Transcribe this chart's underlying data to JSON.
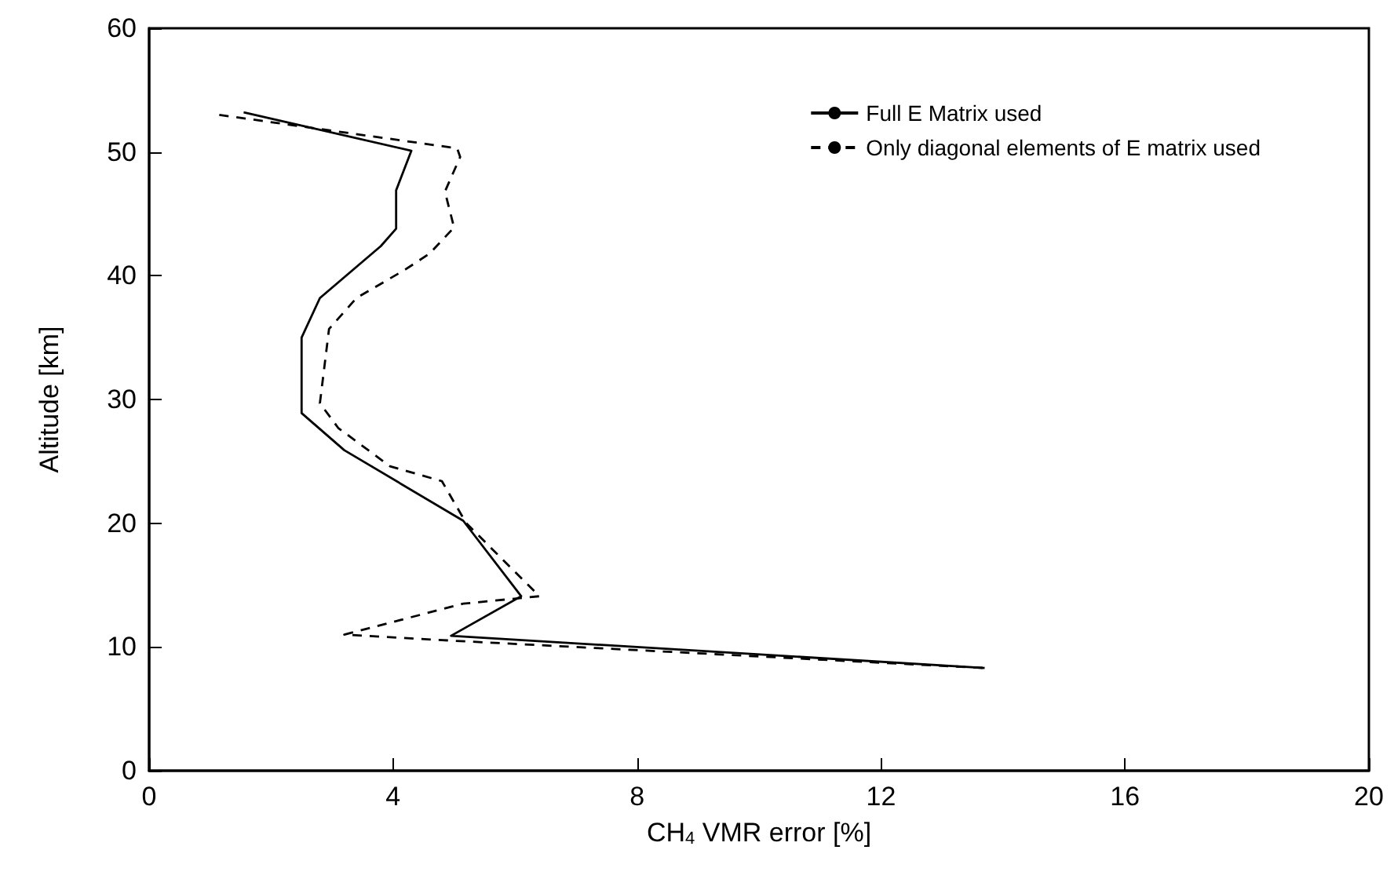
{
  "chart_data": {
    "type": "line",
    "xlabel": "CH$_{4}$ VMR error [%]",
    "ylabel": "Altitude [km]",
    "series": [
      {
        "name": "Full E Matrix used",
        "color": "#000000",
        "line_style": "solid",
        "x": [
          1.55,
          4.3,
          4.05,
          4.05,
          3.8,
          2.8,
          2.5,
          2.5,
          3.2,
          5.15,
          6.1,
          4.95,
          13.7
        ],
        "values": [
          53.2,
          50.1,
          46.9,
          43.8,
          42.4,
          38.2,
          35,
          28.9,
          25.9,
          20.2,
          14.1,
          10.9,
          8.3
        ]
      },
      {
        "name": "Only diagonal elements of E matrix used",
        "color": "#000000",
        "line_style": "dashed",
        "x": [
          1.15,
          5.05,
          5.1,
          4.85,
          5.0,
          4.6,
          4.2,
          3.4,
          2.95,
          2.8,
          3.1,
          3.95,
          4.8,
          5.2,
          6.4,
          5.15,
          3.2,
          5.0,
          13.7
        ],
        "values": [
          53,
          50.3,
          49.6,
          46.8,
          43.9,
          41.8,
          40.5,
          38.2,
          35.7,
          29.7,
          27.7,
          24.6,
          23.4,
          20,
          14.1,
          13.5,
          11.0,
          10.5,
          8.3
        ]
      }
    ],
    "xlim": [
      0,
      20
    ],
    "xticks": [
      0,
      4,
      8,
      12,
      16,
      20
    ],
    "ylim": [
      0,
      60
    ],
    "yticks": [
      0,
      10,
      20,
      30,
      40,
      50,
      60
    ],
    "grid": false,
    "legend": "top right",
    "marker": "none"
  }
}
